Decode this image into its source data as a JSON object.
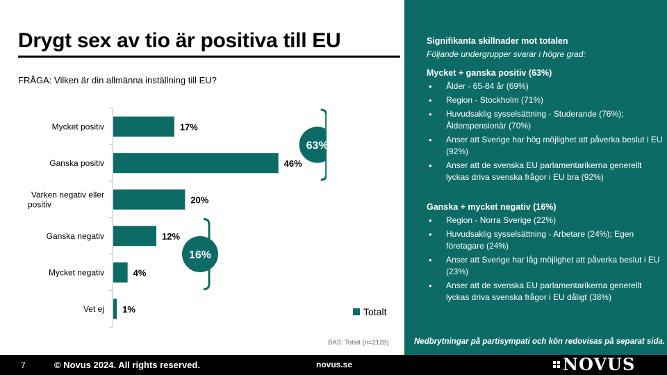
{
  "slide": {
    "title": "Drygt sex av tio är positiva till EU",
    "question": "FRÅGA: Vilken är din allmänna inställning till EU?",
    "base_note": "BAS: Totalt (n=2128)"
  },
  "chart_data": {
    "type": "bar",
    "orientation": "horizontal",
    "categories": [
      "Mycket positiv",
      "Ganska positiv",
      "Varken negativ eller positiv",
      "Ganska negativ",
      "Mycket negativ",
      "Vet ej"
    ],
    "series": [
      {
        "name": "Totalt",
        "values": [
          17,
          46,
          20,
          12,
          4,
          1
        ],
        "color": "#0d6b66"
      }
    ],
    "value_labels": [
      "17%",
      "46%",
      "20%",
      "12%",
      "4%",
      "1%"
    ],
    "xlim": [
      0,
      60
    ],
    "grid": false,
    "legend_position": "bottom-right",
    "annotations": [
      {
        "label": "63%",
        "span_categories": [
          0,
          1
        ]
      },
      {
        "label": "16%",
        "span_categories": [
          3,
          4
        ]
      }
    ]
  },
  "panel": {
    "title": "Signifikanta skillnader mot totalen",
    "subtitle": "Följande undergrupper svarar i högre grad:",
    "groups": [
      {
        "heading": "Mycket + ganska positiv (63%)",
        "items": [
          "Ålder - 65-84 år (69%)",
          "Region - Stockholm (71%)",
          "Huvudsaklig sysselsättning - Studerande (76%); Ålderspensionär (70%)",
          "Anser att Sverige har hög möjlighet att påverka beslut i EU (92%)",
          "Anser att de svenska EU parlamentarikerna generellt lyckas driva svenska frågor i EU bra (92%)"
        ]
      },
      {
        "heading": "Ganska + mycket negativ (16%)",
        "items": [
          "Region - Norra Sverige (22%)",
          "Huvudsaklig sysselsättning - Arbetare (24%); Egen företagare (24%)",
          "Anser att Sverige har låg möjlighet att påverka beslut i EU (23%)",
          "Anser att de svenska EU parlamentarikerna generellt lyckas driva svenska frågor i EU dåligt (38%)"
        ]
      }
    ],
    "note": "Nedbrytningar på partisympati och kön redovisas på separat sida."
  },
  "footer": {
    "page_number": "7",
    "copyright": "© Novus 2024. All rights reserved.",
    "site": "novus.se",
    "logo_text": "NOVUS"
  },
  "colors": {
    "accent": "#0d6b66",
    "footer_bg": "#000000",
    "text": "#000000"
  }
}
